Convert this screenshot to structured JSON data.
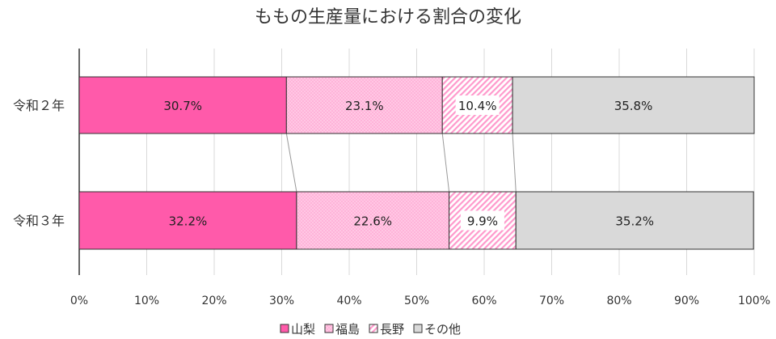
{
  "chart_data": {
    "type": "bar",
    "stacked": "percent",
    "orientation": "horizontal",
    "title": "ももの生産量における割合の変化",
    "categories": [
      "令和２年",
      "令和３年"
    ],
    "series": [
      {
        "name": "山梨",
        "values": [
          30.7,
          32.2
        ],
        "color": "#ff5aaa",
        "pattern": "solid"
      },
      {
        "name": "福島",
        "values": [
          23.1,
          22.6
        ],
        "color": "#ffb3d9",
        "pattern": "dots"
      },
      {
        "name": "長野",
        "values": [
          10.4,
          9.9
        ],
        "color": "#ff99cc",
        "pattern": "diagonal"
      },
      {
        "name": "その他",
        "values": [
          35.8,
          35.2
        ],
        "color": "#d9d9d9",
        "pattern": "solid"
      }
    ],
    "data_labels": [
      [
        "30.7%",
        "23.1%",
        "10.4%",
        "35.8%"
      ],
      [
        "32.2%",
        "22.6%",
        "9.9%",
        "35.2%"
      ]
    ],
    "xlim": [
      0,
      100
    ],
    "xticks": [
      "0%",
      "10%",
      "20%",
      "30%",
      "40%",
      "50%",
      "60%",
      "70%",
      "80%",
      "90%",
      "100%"
    ],
    "grid": true,
    "series_lines": true,
    "legend": "bottom"
  }
}
